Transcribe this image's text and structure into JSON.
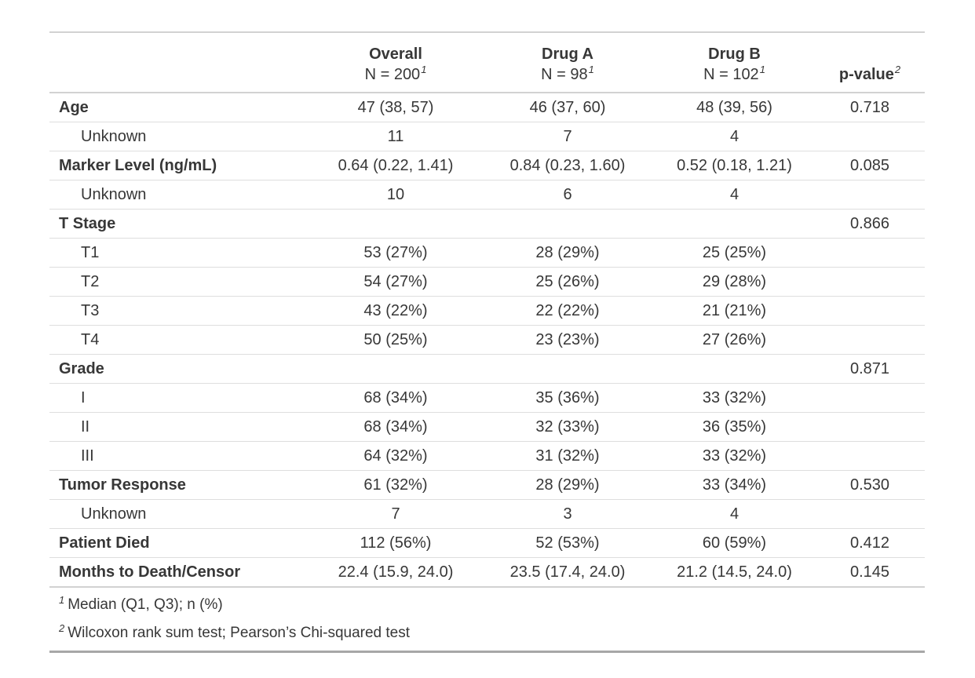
{
  "chart_data": {
    "type": "table",
    "columns": [
      {
        "label": "",
        "sublabel": "",
        "footnote_mark": ""
      },
      {
        "label": "Overall",
        "sublabel": "N = 200",
        "footnote_mark": "1"
      },
      {
        "label": "Drug A",
        "sublabel": "N = 98",
        "footnote_mark": "1"
      },
      {
        "label": "Drug B",
        "sublabel": "N = 102",
        "footnote_mark": "1"
      },
      {
        "label": "p-value",
        "sublabel": "",
        "footnote_mark": "2"
      }
    ],
    "rows": [
      {
        "label": "Age",
        "indent": false,
        "overall": "47 (38, 57)",
        "drug_a": "46 (37, 60)",
        "drug_b": "48 (39, 56)",
        "p_value": "0.718"
      },
      {
        "label": "Unknown",
        "indent": true,
        "overall": "11",
        "drug_a": "7",
        "drug_b": "4",
        "p_value": ""
      },
      {
        "label": "Marker Level (ng/mL)",
        "indent": false,
        "overall": "0.64 (0.22, 1.41)",
        "drug_a": "0.84 (0.23, 1.60)",
        "drug_b": "0.52 (0.18, 1.21)",
        "p_value": "0.085"
      },
      {
        "label": "Unknown",
        "indent": true,
        "overall": "10",
        "drug_a": "6",
        "drug_b": "4",
        "p_value": ""
      },
      {
        "label": "T Stage",
        "indent": false,
        "overall": "",
        "drug_a": "",
        "drug_b": "",
        "p_value": "0.866"
      },
      {
        "label": "T1",
        "indent": true,
        "overall": "53 (27%)",
        "drug_a": "28 (29%)",
        "drug_b": "25 (25%)",
        "p_value": ""
      },
      {
        "label": "T2",
        "indent": true,
        "overall": "54 (27%)",
        "drug_a": "25 (26%)",
        "drug_b": "29 (28%)",
        "p_value": ""
      },
      {
        "label": "T3",
        "indent": true,
        "overall": "43 (22%)",
        "drug_a": "22 (22%)",
        "drug_b": "21 (21%)",
        "p_value": ""
      },
      {
        "label": "T4",
        "indent": true,
        "overall": "50 (25%)",
        "drug_a": "23 (23%)",
        "drug_b": "27 (26%)",
        "p_value": ""
      },
      {
        "label": "Grade",
        "indent": false,
        "overall": "",
        "drug_a": "",
        "drug_b": "",
        "p_value": "0.871"
      },
      {
        "label": "I",
        "indent": true,
        "overall": "68 (34%)",
        "drug_a": "35 (36%)",
        "drug_b": "33 (32%)",
        "p_value": ""
      },
      {
        "label": "II",
        "indent": true,
        "overall": "68 (34%)",
        "drug_a": "32 (33%)",
        "drug_b": "36 (35%)",
        "p_value": ""
      },
      {
        "label": "III",
        "indent": true,
        "overall": "64 (32%)",
        "drug_a": "31 (32%)",
        "drug_b": "33 (32%)",
        "p_value": ""
      },
      {
        "label": "Tumor Response",
        "indent": false,
        "overall": "61 (32%)",
        "drug_a": "28 (29%)",
        "drug_b": "33 (34%)",
        "p_value": "0.530"
      },
      {
        "label": "Unknown",
        "indent": true,
        "overall": "7",
        "drug_a": "3",
        "drug_b": "4",
        "p_value": ""
      },
      {
        "label": "Patient Died",
        "indent": false,
        "overall": "112 (56%)",
        "drug_a": "52 (53%)",
        "drug_b": "60 (59%)",
        "p_value": "0.412"
      },
      {
        "label": "Months to Death/Censor",
        "indent": false,
        "overall": "22.4 (15.9, 24.0)",
        "drug_a": "23.5 (17.4, 24.0)",
        "drug_b": "21.2 (14.5, 24.0)",
        "p_value": "0.145"
      }
    ],
    "footnotes": [
      {
        "mark": "1",
        "text": "Median (Q1, Q3); n (%)"
      },
      {
        "mark": "2",
        "text": "Wilcoxon rank sum test; Pearson’s Chi-squared test"
      }
    ],
    "colors": {
      "text": "#373737",
      "row_line": "#DEDEDE",
      "section_line": "#D2D2D2",
      "bottom_border": "#A7A7A7"
    }
  }
}
